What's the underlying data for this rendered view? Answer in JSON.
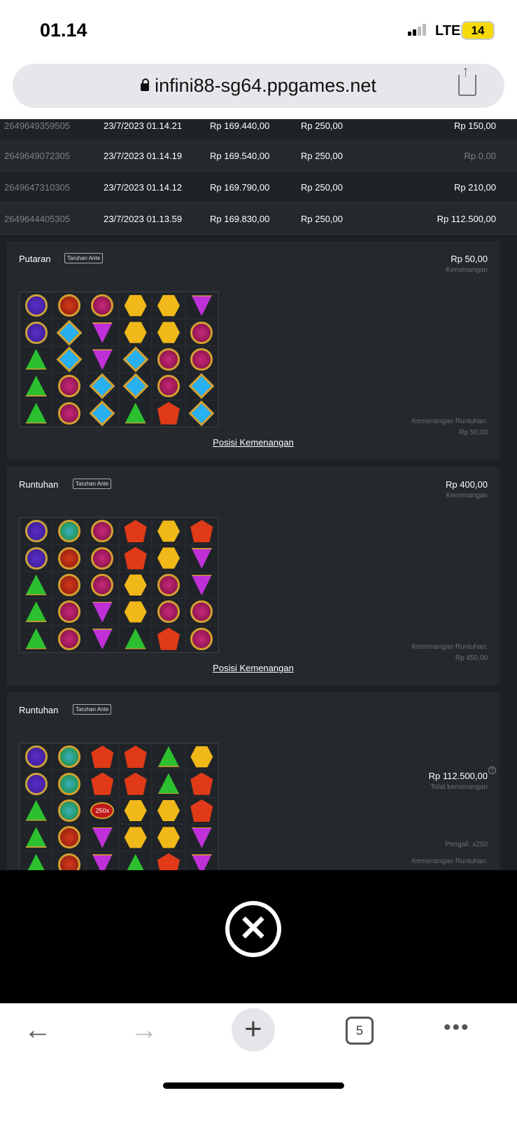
{
  "status": {
    "time": "01.14",
    "network": "LTE",
    "battery": "14"
  },
  "browser": {
    "url": "infini88-sg64.ppgames.net",
    "tab_count": "5"
  },
  "rows": [
    {
      "id": "2649649359505",
      "date": "23/7/2023 01.14.21",
      "balance": "Rp 169.440,00",
      "bet": "Rp 250,00",
      "win": "Rp 150,00"
    },
    {
      "id": "2649649072305",
      "date": "23/7/2023 01.14.19",
      "balance": "Rp 169.540,00",
      "bet": "Rp 250,00",
      "win": "Rp 0,00"
    },
    {
      "id": "2649647310305",
      "date": "23/7/2023 01.14.12",
      "balance": "Rp 169.790,00",
      "bet": "Rp 250,00",
      "win": "Rp 210,00"
    },
    {
      "id": "2649644405305",
      "date": "23/7/2023 01.13.59",
      "balance": "Rp 169.830,00",
      "bet": "Rp 250,00",
      "win": "Rp 112.500,00"
    }
  ],
  "cards": [
    {
      "title": "Putaran",
      "tag": "Taruhan Ante",
      "amount": "Rp 50,00",
      "amount_label": "Kemenangan",
      "cascade_label": "Kemenangan Runtuhan:",
      "cascade_value": "Rp 50,00",
      "link": "Posisi Kemenangan",
      "grid": [
        "PRMYYV",
        "PBVYYM",
        "GBVBMM",
        "GMBBMB",
        "GMBGOB"
      ]
    },
    {
      "title": "Runtuhan",
      "tag": "Taruhan Ante",
      "amount": "Rp 400,00",
      "amount_label": "Kemenangan",
      "cascade_label": "Kemenangan Runtuhan:",
      "cascade_value": "Rp 450,00",
      "link": "Posisi Kemenangan",
      "grid": [
        "PEMOYO",
        "PRMOYV",
        "GRMYMV",
        "GMVYMM",
        "GMVGOM"
      ]
    },
    {
      "title": "Runtuhan",
      "tag": "Taruhan Ante",
      "amount": "Rp 112.500,00",
      "amount_label": "Total kemenangan",
      "multiplier_label": "Pengali: x250",
      "cascade_label": "Kemenangan Runtuhan:",
      "multiplier_symbol": "250x",
      "grid": [
        "PEOOGY",
        "PEOOGO",
        "GEXYYO",
        "GRVYYV",
        "GRVGOV"
      ]
    }
  ],
  "symbol_legend": {
    "P": "purple-orb",
    "R": "red-crown",
    "M": "magenta-ring",
    "Y": "yellow-hexagon",
    "V": "purple-triangle",
    "B": "blue-diamond",
    "G": "green-triangle",
    "O": "red-pentagon",
    "E": "green-orb",
    "X": "multiplier-orb"
  }
}
